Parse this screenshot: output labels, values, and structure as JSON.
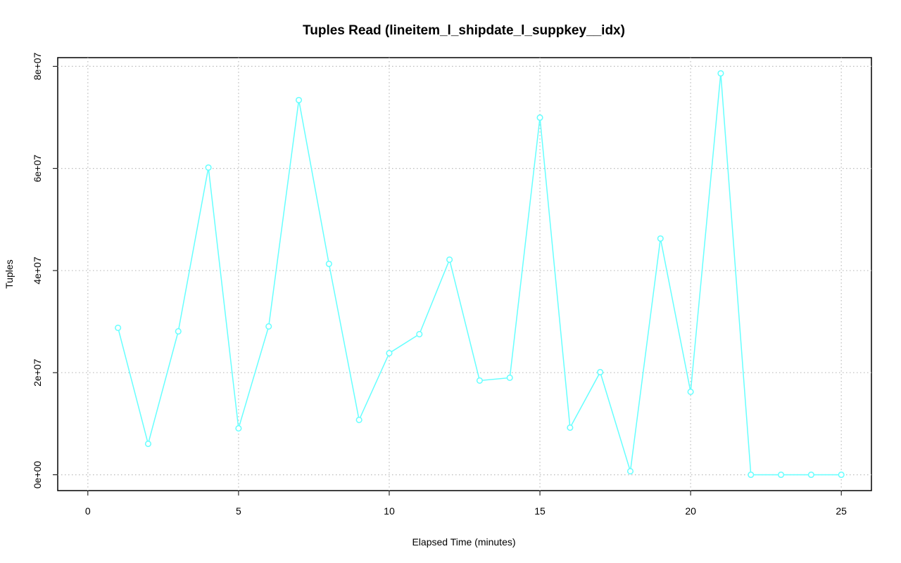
{
  "chart_data": {
    "type": "line",
    "title": "Tuples Read (lineitem_l_shipdate_l_suppkey__idx)",
    "xlabel": "Elapsed Time (minutes)",
    "ylabel": "Tuples",
    "x": [
      1,
      2,
      3,
      4,
      5,
      6,
      7,
      8,
      9,
      10,
      11,
      12,
      13,
      14,
      15,
      16,
      17,
      18,
      19,
      20,
      21,
      22,
      23,
      24,
      25
    ],
    "values": [
      28780000,
      6060000,
      28090000,
      60170000,
      9090000,
      29050000,
      73390000,
      41310000,
      10740000,
      23820000,
      27540000,
      42130000,
      18450000,
      19000000,
      69950000,
      9230000,
      20100000,
      690000,
      46270000,
      16250000,
      78620000,
      0,
      0,
      0,
      0
    ],
    "color": "#66ffff",
    "xlim": [
      -1,
      26
    ],
    "ylim": [
      -3100000,
      81700000
    ],
    "xticks": [
      0,
      5,
      10,
      15,
      20,
      25
    ],
    "yticks": [
      {
        "value": 0,
        "label": "0e+00"
      },
      {
        "value": 20000000,
        "label": "2e+07"
      },
      {
        "value": 40000000,
        "label": "4e+07"
      },
      {
        "value": 60000000,
        "label": "6e+07"
      },
      {
        "value": 80000000,
        "label": "8e+07"
      }
    ],
    "grid": true
  }
}
